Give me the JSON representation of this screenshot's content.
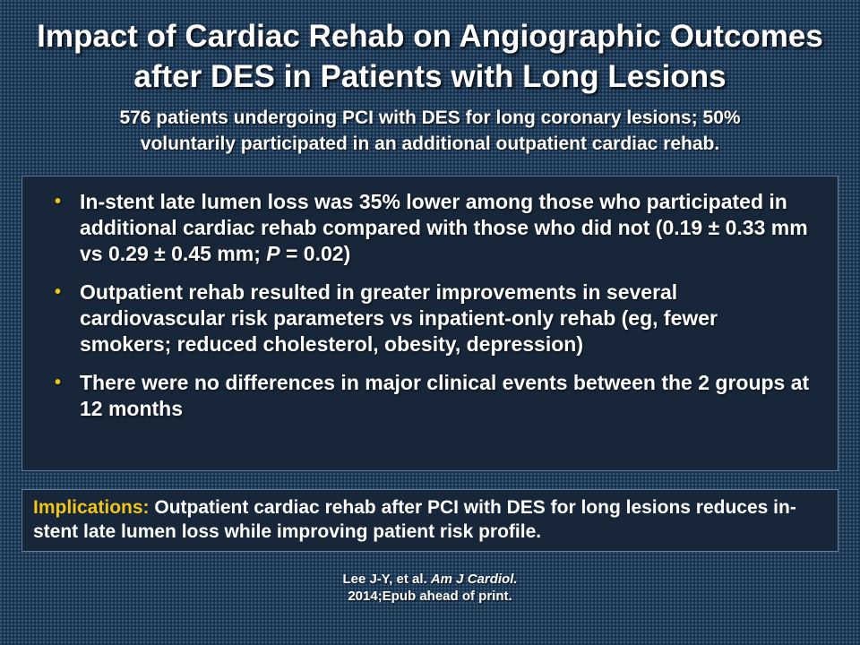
{
  "slide": {
    "title_line1": "Impact of Cardiac Rehab on Angiographic Outcomes",
    "title_line2": "after DES in Patients with Long Lesions",
    "subtitle_line1": "576 patients undergoing PCI with DES for long coronary lesions; 50%",
    "subtitle_line2": "voluntarily participated in an additional outpatient cardiac rehab.",
    "bullet_marker": "•",
    "bullets": [
      {
        "text_pre": "In-stent late lumen loss was 35% lower among those who participated in additional cardiac rehab compared with those who did not (0.19 ± 0.33 mm vs 0.29 ± 0.45 mm; ",
        "text_italic": "P",
        "text_post": " = 0.02)"
      },
      {
        "text": "Outpatient rehab resulted in greater improvements in several cardiovascular risk parameters vs inpatient-only rehab (eg, fewer smokers; reduced cholesterol, obesity, depression)"
      },
      {
        "text": "There were no differences in major clinical events between the 2 groups at 12 months"
      }
    ],
    "implications_label": "Implications:",
    "implications_text": " Outpatient cardiac rehab after PCI with DES for long lesions reduces in-stent late lumen loss while improving patient risk profile.",
    "citation_line1_pre": "Lee J-Y, et al. ",
    "citation_line1_journal": "Am J Cardiol.",
    "citation_line2": "2014;Epub ahead of print."
  },
  "colors": {
    "background": "#1e3a57",
    "box_background": "#172638",
    "box_border": "#5f7d9a",
    "accent": "#f0c419",
    "text": "#ffffff"
  }
}
